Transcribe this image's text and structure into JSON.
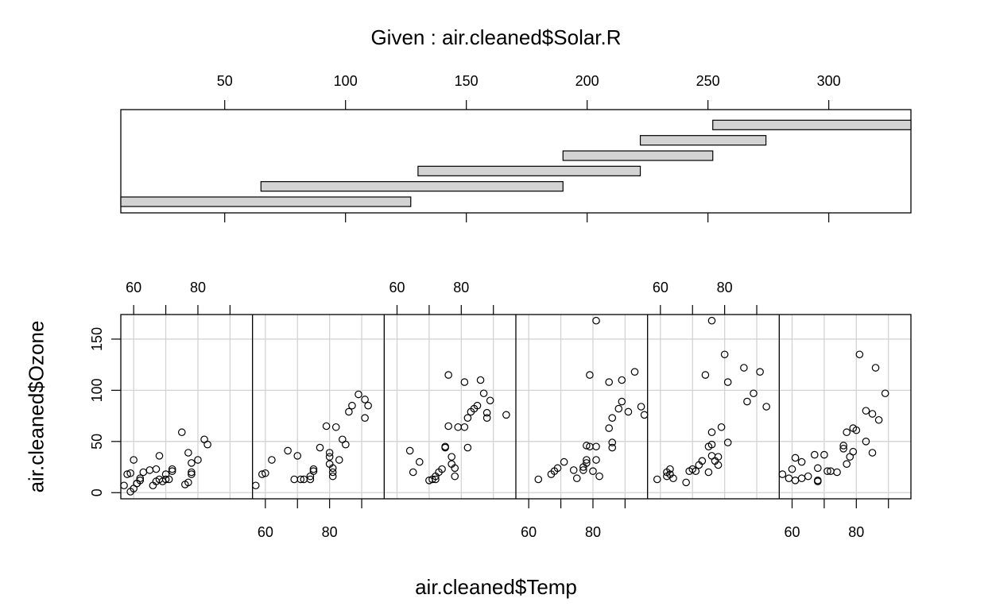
{
  "chart_data": {
    "type": "scatter",
    "title": "Given : air.cleaned$Solar.R",
    "xlabel": "air.cleaned$Temp",
    "ylabel": "air.cleaned$Ozone",
    "given": {
      "label": "Given : air.cleaned$Solar.R",
      "axis_ticks": [
        50,
        100,
        150,
        200,
        250,
        300
      ],
      "xlim": [
        7,
        334
      ],
      "intervals": [
        [
          7,
          127
        ],
        [
          65,
          190
        ],
        [
          130,
          222
        ],
        [
          190,
          252
        ],
        [
          222,
          274
        ],
        [
          252,
          334
        ]
      ]
    },
    "panel_xlim": [
      56,
      97
    ],
    "panel_ylim": [
      -6,
      174
    ],
    "x_ticks": [
      60,
      70,
      80,
      90
    ],
    "x_tick_labels": [
      60,
      80
    ],
    "y_ticks": [
      0,
      50,
      100,
      150
    ],
    "y_tick_labels": [
      "0",
      "50",
      "100",
      "150"
    ],
    "grid": true,
    "panels": [
      {
        "points": [
          [
            57,
            7
          ],
          [
            58,
            18
          ],
          [
            59,
            19
          ],
          [
            59,
            1
          ],
          [
            60,
            4
          ],
          [
            60,
            32
          ],
          [
            61,
            9
          ],
          [
            61,
            9
          ],
          [
            62,
            12
          ],
          [
            62,
            14
          ],
          [
            63,
            20
          ],
          [
            65,
            22
          ],
          [
            66,
            7
          ],
          [
            67,
            23
          ],
          [
            67,
            11
          ],
          [
            68,
            13
          ],
          [
            68,
            36
          ],
          [
            69,
            11
          ],
          [
            70,
            13
          ],
          [
            70,
            18
          ],
          [
            71,
            13
          ],
          [
            72,
            23
          ],
          [
            72,
            21
          ],
          [
            75,
            59
          ],
          [
            76,
            8
          ],
          [
            77,
            39
          ],
          [
            77,
            10
          ],
          [
            78,
            29
          ],
          [
            78,
            18
          ],
          [
            78,
            20
          ],
          [
            80,
            32
          ],
          [
            82,
            52
          ],
          [
            83,
            47
          ]
        ]
      },
      {
        "points": [
          [
            57,
            7
          ],
          [
            59,
            18
          ],
          [
            60,
            19
          ],
          [
            62,
            32
          ],
          [
            67,
            41
          ],
          [
            69,
            13
          ],
          [
            70,
            36
          ],
          [
            71,
            13
          ],
          [
            72,
            13
          ],
          [
            74,
            13
          ],
          [
            74,
            16
          ],
          [
            75,
            23
          ],
          [
            75,
            21
          ],
          [
            77,
            44
          ],
          [
            79,
            65
          ],
          [
            80,
            35
          ],
          [
            80,
            39
          ],
          [
            80,
            28
          ],
          [
            81,
            20
          ],
          [
            81,
            16
          ],
          [
            81,
            24
          ],
          [
            82,
            64
          ],
          [
            83,
            32
          ],
          [
            84,
            52
          ],
          [
            85,
            47
          ],
          [
            86,
            79
          ],
          [
            87,
            85
          ],
          [
            89,
            96
          ],
          [
            91,
            91
          ],
          [
            91,
            73
          ],
          [
            92,
            85
          ]
        ]
      },
      {
        "points": [
          [
            64,
            41
          ],
          [
            65,
            20
          ],
          [
            67,
            30
          ],
          [
            70,
            12
          ],
          [
            71,
            13
          ],
          [
            72,
            16
          ],
          [
            72,
            13
          ],
          [
            73,
            20
          ],
          [
            74,
            23
          ],
          [
            75,
            44
          ],
          [
            75,
            45
          ],
          [
            76,
            115
          ],
          [
            76,
            65
          ],
          [
            77,
            35
          ],
          [
            77,
            28
          ],
          [
            78,
            24
          ],
          [
            78,
            16
          ],
          [
            79,
            64
          ],
          [
            81,
            64
          ],
          [
            81,
            108
          ],
          [
            82,
            44
          ],
          [
            82,
            73
          ],
          [
            83,
            79
          ],
          [
            84,
            82
          ],
          [
            85,
            85
          ],
          [
            86,
            110
          ],
          [
            87,
            97
          ],
          [
            88,
            78
          ],
          [
            88,
            73
          ],
          [
            89,
            90
          ],
          [
            94,
            76
          ]
        ]
      },
      {
        "points": [
          [
            63,
            13
          ],
          [
            67,
            18
          ],
          [
            68,
            21
          ],
          [
            69,
            24
          ],
          [
            71,
            30
          ],
          [
            74,
            22
          ],
          [
            75,
            14
          ],
          [
            77,
            22
          ],
          [
            77,
            25
          ],
          [
            78,
            29
          ],
          [
            78,
            32
          ],
          [
            78,
            46
          ],
          [
            79,
            115
          ],
          [
            79,
            45
          ],
          [
            80,
            21
          ],
          [
            81,
            45
          ],
          [
            81,
            168
          ],
          [
            81,
            32
          ],
          [
            82,
            16
          ],
          [
            85,
            108
          ],
          [
            85,
            63
          ],
          [
            86,
            73
          ],
          [
            86,
            49
          ],
          [
            86,
            44
          ],
          [
            88,
            82
          ],
          [
            89,
            110
          ],
          [
            89,
            89
          ],
          [
            91,
            79
          ],
          [
            93,
            118
          ],
          [
            95,
            84
          ],
          [
            96,
            76
          ]
        ]
      },
      {
        "points": [
          [
            59,
            13
          ],
          [
            62,
            16
          ],
          [
            62,
            20
          ],
          [
            63,
            23
          ],
          [
            63,
            18
          ],
          [
            64,
            14
          ],
          [
            68,
            10
          ],
          [
            69,
            21
          ],
          [
            70,
            23
          ],
          [
            71,
            21
          ],
          [
            72,
            27
          ],
          [
            73,
            31
          ],
          [
            74,
            115
          ],
          [
            75,
            45
          ],
          [
            75,
            20
          ],
          [
            76,
            36
          ],
          [
            76,
            59
          ],
          [
            76,
            168
          ],
          [
            76,
            47
          ],
          [
            77,
            31
          ],
          [
            78,
            27
          ],
          [
            78,
            35
          ],
          [
            79,
            64
          ],
          [
            80,
            135
          ],
          [
            81,
            108
          ],
          [
            81,
            49
          ],
          [
            86,
            122
          ],
          [
            87,
            89
          ],
          [
            89,
            97
          ],
          [
            91,
            118
          ],
          [
            93,
            84
          ]
        ]
      },
      {
        "points": [
          [
            57,
            18
          ],
          [
            59,
            14
          ],
          [
            60,
            23
          ],
          [
            61,
            12
          ],
          [
            61,
            34
          ],
          [
            63,
            14
          ],
          [
            63,
            30
          ],
          [
            65,
            16
          ],
          [
            67,
            37
          ],
          [
            68,
            24
          ],
          [
            68,
            12
          ],
          [
            68,
            11
          ],
          [
            70,
            37
          ],
          [
            71,
            21
          ],
          [
            72,
            21
          ],
          [
            74,
            20
          ],
          [
            76,
            46
          ],
          [
            76,
            43
          ],
          [
            77,
            59
          ],
          [
            77,
            28
          ],
          [
            78,
            35
          ],
          [
            79,
            63
          ],
          [
            79,
            40
          ],
          [
            80,
            61
          ],
          [
            81,
            135
          ],
          [
            83,
            80
          ],
          [
            83,
            50
          ],
          [
            85,
            77
          ],
          [
            85,
            39
          ],
          [
            86,
            122
          ],
          [
            87,
            71
          ],
          [
            89,
            97
          ]
        ]
      }
    ]
  }
}
